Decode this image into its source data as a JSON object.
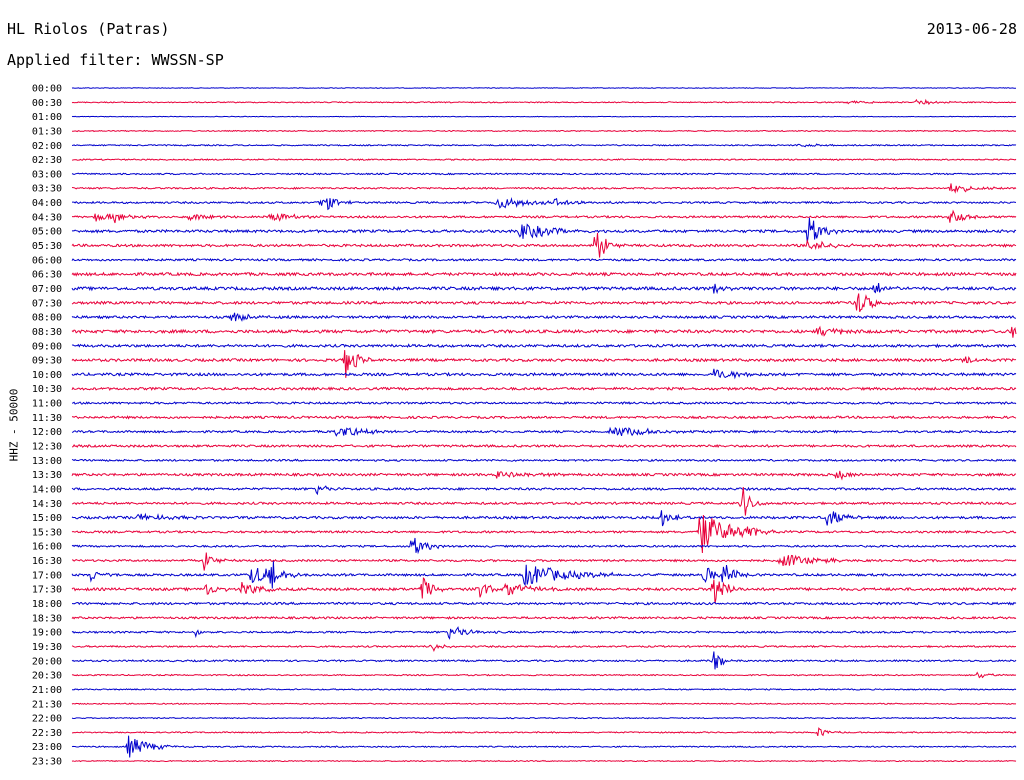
{
  "header": {
    "station": "HL Riolos (Patras)",
    "date": "2013-06-28",
    "filter": "Applied filter: WWSSN-SP"
  },
  "chart_data": {
    "type": "line",
    "title": "HL Riolos (Patras)",
    "ylabel": "HHZ - 50000",
    "colors": [
      "#0000cc",
      "#e8003a"
    ],
    "rows": [
      "00:00",
      "00:30",
      "01:00",
      "01:30",
      "02:00",
      "02:30",
      "03:00",
      "03:30",
      "04:00",
      "04:30",
      "05:00",
      "05:30",
      "06:00",
      "06:30",
      "07:00",
      "07:30",
      "08:00",
      "08:30",
      "09:00",
      "09:30",
      "10:00",
      "10:30",
      "11:00",
      "11:30",
      "12:00",
      "12:30",
      "13:00",
      "13:30",
      "14:00",
      "14:30",
      "15:00",
      "15:30",
      "16:00",
      "16:30",
      "17:00",
      "17:30",
      "18:00",
      "18:30",
      "19:00",
      "19:30",
      "20:00",
      "20:30",
      "21:00",
      "21:30",
      "22:00",
      "22:30",
      "23:00",
      "23:30"
    ],
    "noise": [
      0.3,
      0.5,
      0.3,
      0.5,
      0.6,
      0.6,
      0.7,
      0.8,
      0.9,
      1.0,
      1.3,
      1.2,
      1.0,
      1.4,
      1.5,
      1.3,
      1.2,
      1.5,
      1.3,
      1.3,
      1.3,
      1.2,
      1.0,
      1.1,
      1.0,
      1.1,
      0.9,
      1.2,
      1.1,
      1.1,
      1.2,
      1.0,
      0.9,
      1.0,
      1.1,
      1.3,
      1.1,
      1.0,
      0.9,
      0.8,
      0.8,
      0.6,
      0.6,
      0.5,
      0.5,
      0.6,
      0.6,
      0.5
    ],
    "events": [
      {
        "row": 1,
        "t": 0.895,
        "amp": 3,
        "dur": 0.02
      },
      {
        "row": 1,
        "t": 0.82,
        "amp": 1.5,
        "dur": 0.03
      },
      {
        "row": 4,
        "t": 0.77,
        "amp": 2,
        "dur": 0.02
      },
      {
        "row": 8,
        "t": 0.265,
        "amp": 13,
        "dur": 0.01
      },
      {
        "row": 8,
        "t": 0.45,
        "amp": 6,
        "dur": 0.04
      },
      {
        "row": 8,
        "t": 0.51,
        "amp": 4,
        "dur": 0.02
      },
      {
        "row": 7,
        "t": 0.93,
        "amp": 6,
        "dur": 0.02
      },
      {
        "row": 9,
        "t": 0.025,
        "amp": 5,
        "dur": 0.02
      },
      {
        "row": 9,
        "t": 0.045,
        "amp": 5,
        "dur": 0.015
      },
      {
        "row": 9,
        "t": 0.125,
        "amp": 4,
        "dur": 0.015
      },
      {
        "row": 9,
        "t": 0.21,
        "amp": 5,
        "dur": 0.02
      },
      {
        "row": 9,
        "t": 0.93,
        "amp": 11,
        "dur": 0.012
      },
      {
        "row": 10,
        "t": 0.475,
        "amp": 9,
        "dur": 0.03
      },
      {
        "row": 10,
        "t": 0.78,
        "amp": 22,
        "dur": 0.01
      },
      {
        "row": 11,
        "t": 0.555,
        "amp": 18,
        "dur": 0.01
      },
      {
        "row": 11,
        "t": 0.78,
        "amp": 6,
        "dur": 0.02
      },
      {
        "row": 14,
        "t": 0.43,
        "amp": 5,
        "dur": 0.01
      },
      {
        "row": 14,
        "t": 0.68,
        "amp": 6,
        "dur": 0.01
      },
      {
        "row": 14,
        "t": 0.85,
        "amp": 7,
        "dur": 0.01
      },
      {
        "row": 15,
        "t": 0.83,
        "amp": 17,
        "dur": 0.012
      },
      {
        "row": 16,
        "t": 0.17,
        "amp": 5,
        "dur": 0.02
      },
      {
        "row": 17,
        "t": 0.79,
        "amp": 6,
        "dur": 0.02
      },
      {
        "row": 17,
        "t": 0.995,
        "amp": 8,
        "dur": 0.01
      },
      {
        "row": 19,
        "t": 0.29,
        "amp": 20,
        "dur": 0.01
      },
      {
        "row": 19,
        "t": 0.945,
        "amp": 5,
        "dur": 0.01
      },
      {
        "row": 20,
        "t": 0.68,
        "amp": 6,
        "dur": 0.025
      },
      {
        "row": 24,
        "t": 0.28,
        "amp": 6,
        "dur": 0.03
      },
      {
        "row": 24,
        "t": 0.57,
        "amp": 6,
        "dur": 0.04
      },
      {
        "row": 27,
        "t": 0.45,
        "amp": 4,
        "dur": 0.03
      },
      {
        "row": 27,
        "t": 0.81,
        "amp": 5,
        "dur": 0.015
      },
      {
        "row": 28,
        "t": 0.26,
        "amp": 6,
        "dur": 0.01
      },
      {
        "row": 29,
        "t": 0.71,
        "amp": 20,
        "dur": 0.008
      },
      {
        "row": 30,
        "t": 0.07,
        "amp": 4,
        "dur": 0.03
      },
      {
        "row": 30,
        "t": 0.625,
        "amp": 10,
        "dur": 0.015
      },
      {
        "row": 30,
        "t": 0.8,
        "amp": 10,
        "dur": 0.015
      },
      {
        "row": 31,
        "t": 0.665,
        "amp": 24,
        "dur": 0.025
      },
      {
        "row": 31,
        "t": 0.71,
        "amp": 12,
        "dur": 0.01
      },
      {
        "row": 32,
        "t": 0.36,
        "amp": 13,
        "dur": 0.012
      },
      {
        "row": 33,
        "t": 0.14,
        "amp": 10,
        "dur": 0.01
      },
      {
        "row": 33,
        "t": 0.75,
        "amp": 8,
        "dur": 0.03
      },
      {
        "row": 34,
        "t": 0.02,
        "amp": 7,
        "dur": 0.01
      },
      {
        "row": 34,
        "t": 0.19,
        "amp": 10,
        "dur": 0.025
      },
      {
        "row": 34,
        "t": 0.21,
        "amp": 18,
        "dur": 0.008
      },
      {
        "row": 34,
        "t": 0.48,
        "amp": 12,
        "dur": 0.04
      },
      {
        "row": 34,
        "t": 0.67,
        "amp": 10,
        "dur": 0.01
      },
      {
        "row": 34,
        "t": 0.69,
        "amp": 14,
        "dur": 0.01
      },
      {
        "row": 35,
        "t": 0.14,
        "amp": 8,
        "dur": 0.01
      },
      {
        "row": 35,
        "t": 0.18,
        "amp": 8,
        "dur": 0.015
      },
      {
        "row": 35,
        "t": 0.37,
        "amp": 14,
        "dur": 0.01
      },
      {
        "row": 35,
        "t": 0.43,
        "amp": 12,
        "dur": 0.01
      },
      {
        "row": 35,
        "t": 0.46,
        "amp": 8,
        "dur": 0.02
      },
      {
        "row": 35,
        "t": 0.68,
        "amp": 20,
        "dur": 0.01
      },
      {
        "row": 38,
        "t": 0.4,
        "amp": 8,
        "dur": 0.015
      },
      {
        "row": 38,
        "t": 0.13,
        "amp": 4,
        "dur": 0.01
      },
      {
        "row": 39,
        "t": 0.38,
        "amp": 6,
        "dur": 0.01
      },
      {
        "row": 40,
        "t": 0.68,
        "amp": 10,
        "dur": 0.008
      },
      {
        "row": 41,
        "t": 0.96,
        "amp": 5,
        "dur": 0.01
      },
      {
        "row": 45,
        "t": 0.79,
        "amp": 5,
        "dur": 0.01
      },
      {
        "row": 46,
        "t": 0.06,
        "amp": 11,
        "dur": 0.02
      }
    ]
  }
}
